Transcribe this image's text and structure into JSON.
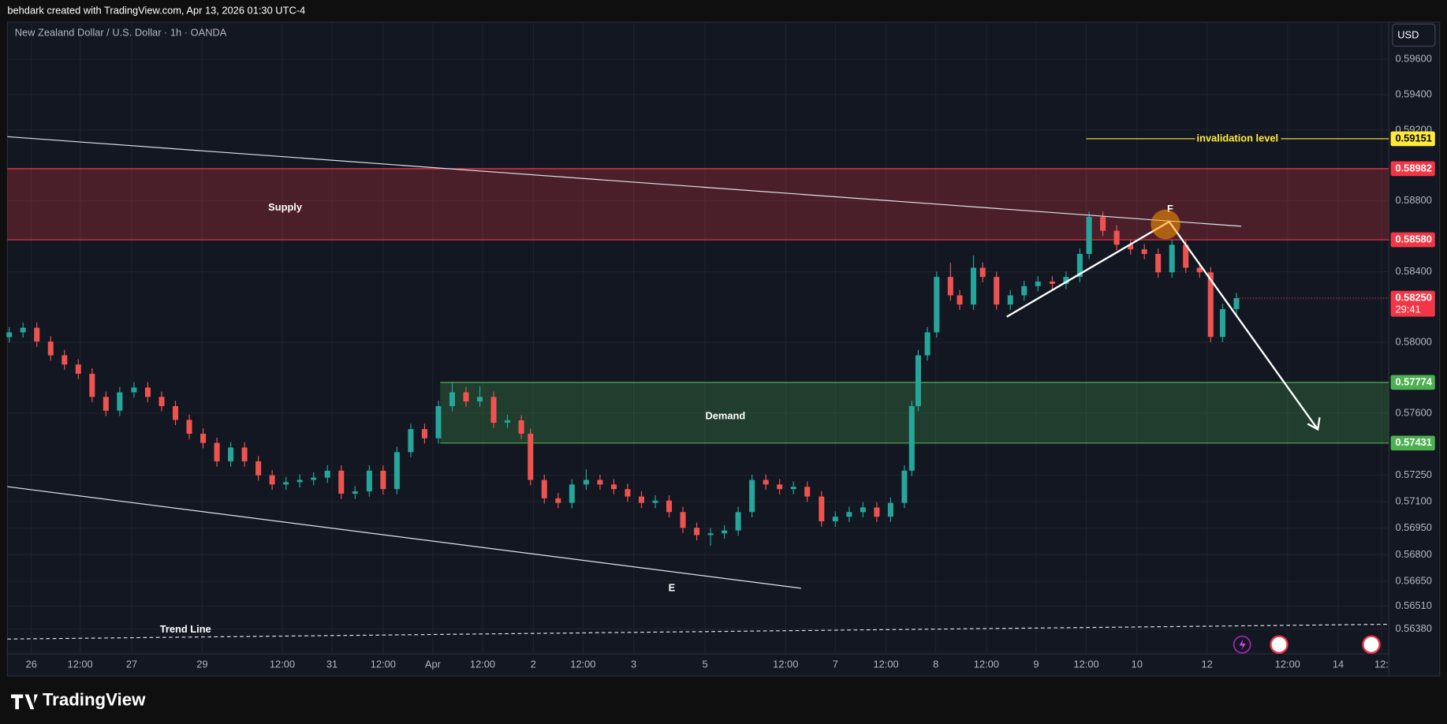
{
  "header": "behdark created with TradingView.com, Apr 13, 2026 01:30 UTC-4",
  "footer": "TradingView",
  "chart_data": {
    "type": "candlestick",
    "title": "New Zealand Dollar / U.S. Dollar · 1h · OANDA",
    "currency": "USD",
    "x": [
      0.4,
      3.4,
      6.4,
      9.4,
      12.4,
      15.4,
      18.4,
      21.4,
      24.4,
      27.5,
      30.5,
      33.5,
      36.5,
      39.5,
      42.5,
      45.5,
      48.5,
      51.5,
      54.5,
      57.5,
      60.5,
      63.5,
      66.5,
      69.5,
      72.5,
      75.5,
      78.6,
      81.6,
      84.6,
      87.6,
      90.6,
      93.6,
      96.6,
      99.6,
      102.6,
      105.6,
      108.6,
      111.6,
      113.6,
      116.6,
      119.6,
      122.6,
      125.7,
      128.7,
      131.7,
      134.7,
      137.7,
      140.7,
      143.7,
      146.7,
      149.7,
      152.7,
      155.7,
      158.7,
      161.7,
      164.7,
      167.7,
      170.7,
      173.7,
      176.8,
      179.8,
      182.8,
      185.8,
      188.8,
      191.8,
      194.8,
      196.4,
      197.8,
      199.8,
      201.8,
      204.8,
      206.8,
      209.8,
      211.8,
      214.8,
      217.8,
      220.8,
      223.8,
      226.9,
      229.9,
      232.9,
      234.9,
      237.9,
      240.9,
      243.9,
      246.9,
      249.9,
      252.9,
      255.9,
      258.9,
      261.3,
      263.9,
      266.9
    ],
    "open": [
      0.5803,
      0.58057,
      0.58083,
      0.58005,
      0.57927,
      0.57875,
      0.57823,
      0.57692,
      0.57614,
      0.57718,
      0.57745,
      0.57692,
      0.5764,
      0.57562,
      0.57484,
      0.57432,
      0.57328,
      0.57406,
      0.57328,
      0.57249,
      0.57197,
      0.5721,
      0.57223,
      0.57236,
      0.57275,
      0.57145,
      0.57158,
      0.57275,
      0.57171,
      0.5738,
      0.5751,
      0.57458,
      0.5764,
      0.57718,
      0.57666,
      0.57692,
      0.57546,
      0.5756,
      0.57484,
      0.57223,
      0.57119,
      0.57093,
      0.57197,
      0.57223,
      0.57197,
      0.57171,
      0.57129,
      0.57093,
      0.57106,
      0.57041,
      0.56952,
      0.56911,
      0.56921,
      0.56937,
      0.57041,
      0.57223,
      0.57197,
      0.57171,
      0.57184,
      0.57129,
      0.56989,
      0.57015,
      0.57041,
      0.57067,
      0.57015,
      0.57093,
      0.57275,
      0.5764,
      0.57927,
      0.58057,
      0.5837,
      0.58266,
      0.58214,
      0.58422,
      0.5837,
      0.58214,
      0.58266,
      0.58318,
      0.58344,
      0.58331,
      0.5837,
      0.585,
      0.58709,
      0.58631,
      0.58552,
      0.58526,
      0.585,
      0.58396,
      0.58552,
      0.58422,
      0.58396,
      0.58031,
      0.58188
    ],
    "high": [
      0.58087,
      0.58113,
      0.58113,
      0.58035,
      0.57957,
      0.57905,
      0.57853,
      0.57722,
      0.57748,
      0.57775,
      0.57775,
      0.57722,
      0.5767,
      0.57592,
      0.57514,
      0.57462,
      0.57436,
      0.57436,
      0.57358,
      0.57279,
      0.5724,
      0.57253,
      0.57266,
      0.57305,
      0.57305,
      0.57188,
      0.57305,
      0.57305,
      0.5741,
      0.5754,
      0.5754,
      0.5767,
      0.57778,
      0.57748,
      0.57752,
      0.57722,
      0.5759,
      0.5759,
      0.57514,
      0.57253,
      0.57149,
      0.57227,
      0.57283,
      0.57253,
      0.57227,
      0.57201,
      0.57159,
      0.57136,
      0.57136,
      0.57071,
      0.56982,
      0.56951,
      0.56967,
      0.57071,
      0.57253,
      0.57253,
      0.57227,
      0.57214,
      0.57214,
      0.57159,
      0.57045,
      0.57071,
      0.57097,
      0.57097,
      0.57123,
      0.57305,
      0.5767,
      0.57957,
      0.58087,
      0.584,
      0.5845,
      0.58296,
      0.58492,
      0.58452,
      0.584,
      0.58296,
      0.58348,
      0.58374,
      0.58374,
      0.584,
      0.5853,
      0.58739,
      0.58739,
      0.58661,
      0.58582,
      0.58556,
      0.5853,
      0.58582,
      0.58582,
      0.58452,
      0.58426,
      0.58218,
      0.5828
    ],
    "low": [
      0.58,
      0.58027,
      0.57975,
      0.57897,
      0.57845,
      0.57793,
      0.57662,
      0.57584,
      0.57584,
      0.57688,
      0.57662,
      0.5761,
      0.57532,
      0.57454,
      0.57402,
      0.57298,
      0.57298,
      0.57298,
      0.57219,
      0.57167,
      0.57167,
      0.5718,
      0.57193,
      0.57206,
      0.57115,
      0.57115,
      0.57128,
      0.57141,
      0.57141,
      0.5735,
      0.57428,
      0.57428,
      0.5761,
      0.57636,
      0.57636,
      0.57516,
      0.57516,
      0.57454,
      0.57193,
      0.57089,
      0.57063,
      0.57063,
      0.57167,
      0.57167,
      0.57141,
      0.57099,
      0.57063,
      0.57063,
      0.57011,
      0.56922,
      0.56881,
      0.56851,
      0.56891,
      0.56907,
      0.57011,
      0.57167,
      0.57141,
      0.57141,
      0.57099,
      0.56959,
      0.56959,
      0.56985,
      0.57011,
      0.56985,
      0.56985,
      0.57063,
      0.57245,
      0.5761,
      0.57897,
      0.58027,
      0.58236,
      0.58184,
      0.58184,
      0.5834,
      0.58184,
      0.58184,
      0.58236,
      0.58288,
      0.58301,
      0.58301,
      0.5834,
      0.5847,
      0.58601,
      0.58522,
      0.58496,
      0.5847,
      0.58366,
      0.58366,
      0.58392,
      0.58366,
      0.58001,
      0.58001,
      0.58158
    ],
    "close": [
      0.58057,
      0.58083,
      0.58005,
      0.57927,
      0.57875,
      0.57823,
      0.57692,
      0.57614,
      0.57718,
      0.57745,
      0.57692,
      0.5764,
      0.57562,
      0.57484,
      0.57432,
      0.57328,
      0.57406,
      0.57328,
      0.57249,
      0.57197,
      0.5721,
      0.57223,
      0.57236,
      0.57275,
      0.57145,
      0.57158,
      0.57275,
      0.57171,
      0.5738,
      0.5751,
      0.57458,
      0.5764,
      0.57718,
      0.57666,
      0.57692,
      0.57546,
      0.5756,
      0.57484,
      0.57223,
      0.57119,
      0.57093,
      0.57197,
      0.57223,
      0.57197,
      0.57171,
      0.57129,
      0.57093,
      0.57106,
      0.57041,
      0.56952,
      0.56911,
      0.56921,
      0.56937,
      0.57041,
      0.57223,
      0.57197,
      0.57171,
      0.57184,
      0.57129,
      0.56989,
      0.57015,
      0.57041,
      0.57067,
      0.57015,
      0.57093,
      0.57275,
      0.5764,
      0.57927,
      0.58057,
      0.5837,
      0.58266,
      0.58214,
      0.58422,
      0.5837,
      0.58214,
      0.58266,
      0.58318,
      0.58344,
      0.58331,
      0.5837,
      0.585,
      0.58709,
      0.58631,
      0.58552,
      0.58526,
      0.585,
      0.58396,
      0.58552,
      0.58422,
      0.58396,
      0.58031,
      0.58188,
      0.5825
    ],
    "up_color": "#26a69a",
    "down_color": "#ef5350",
    "xlim": [
      0,
      300
    ],
    "xticks": [
      {
        "value": 5.2,
        "label": "26"
      },
      {
        "value": 15.8,
        "label": "12:00"
      },
      {
        "value": 27,
        "label": "27"
      },
      {
        "value": 42.3,
        "label": "29"
      },
      {
        "value": 59.7,
        "label": "12:00"
      },
      {
        "value": 70.5,
        "label": "31"
      },
      {
        "value": 81.6,
        "label": "12:00"
      },
      {
        "value": 92.4,
        "label": "Apr"
      },
      {
        "value": 103.2,
        "label": "12:00"
      },
      {
        "value": 114.2,
        "label": "2"
      },
      {
        "value": 125,
        "label": "12:00"
      },
      {
        "value": 136,
        "label": "3"
      },
      {
        "value": 151.5,
        "label": "5"
      },
      {
        "value": 169,
        "label": "12:00"
      },
      {
        "value": 179.8,
        "label": "7"
      },
      {
        "value": 190.8,
        "label": "12:00"
      },
      {
        "value": 201.6,
        "label": "8"
      },
      {
        "value": 212.6,
        "label": "12:00"
      },
      {
        "value": 223.4,
        "label": "9"
      },
      {
        "value": 234.3,
        "label": "12:00"
      },
      {
        "value": 245.3,
        "label": "10"
      },
      {
        "value": 260.5,
        "label": "12"
      },
      {
        "value": 278,
        "label": "12:00"
      },
      {
        "value": 289,
        "label": "14"
      },
      {
        "value": 298.4,
        "label": "12:"
      }
    ],
    "ylim": [
      0.5624,
      0.5981
    ],
    "yticks": [
      {
        "value": 0.596,
        "label": "0.59600"
      },
      {
        "value": 0.594,
        "label": "0.59400"
      },
      {
        "value": 0.592,
        "label": "0.59200"
      },
      {
        "value": 0.588,
        "label": "0.58800"
      },
      {
        "value": 0.584,
        "label": "0.58400"
      },
      {
        "value": 0.58,
        "label": "0.58000"
      },
      {
        "value": 0.576,
        "label": "0.57600"
      },
      {
        "value": 0.5725,
        "label": "0.57250"
      },
      {
        "value": 0.571,
        "label": "0.57100"
      },
      {
        "value": 0.5695,
        "label": "0.56950"
      },
      {
        "value": 0.568,
        "label": "0.56800"
      },
      {
        "value": 0.5665,
        "label": "0.56650"
      },
      {
        "value": 0.5651,
        "label": "0.56510"
      },
      {
        "value": 0.5638,
        "label": "0.56380"
      }
    ],
    "grid": true,
    "last_price": {
      "value": 0.5825,
      "label": "0.58250",
      "countdown": "29:41",
      "color": "#f23645"
    },
    "zones": [
      {
        "name": "Supply",
        "top": 0.58982,
        "bottom": {
          "value": 0.5858,
          "label": "0.58580"
        },
        "color": "#f23645"
      },
      {
        "name": "Demand",
        "top": 0.57774,
        "bottom": 0.57431,
        "color": "#4caf50"
      }
    ],
    "levels": [
      {
        "name": "invalidation level",
        "value": 0.59151,
        "color": "#ffeb3b"
      }
    ],
    "annotations": [
      "E",
      "F",
      "Trend Line"
    ]
  }
}
